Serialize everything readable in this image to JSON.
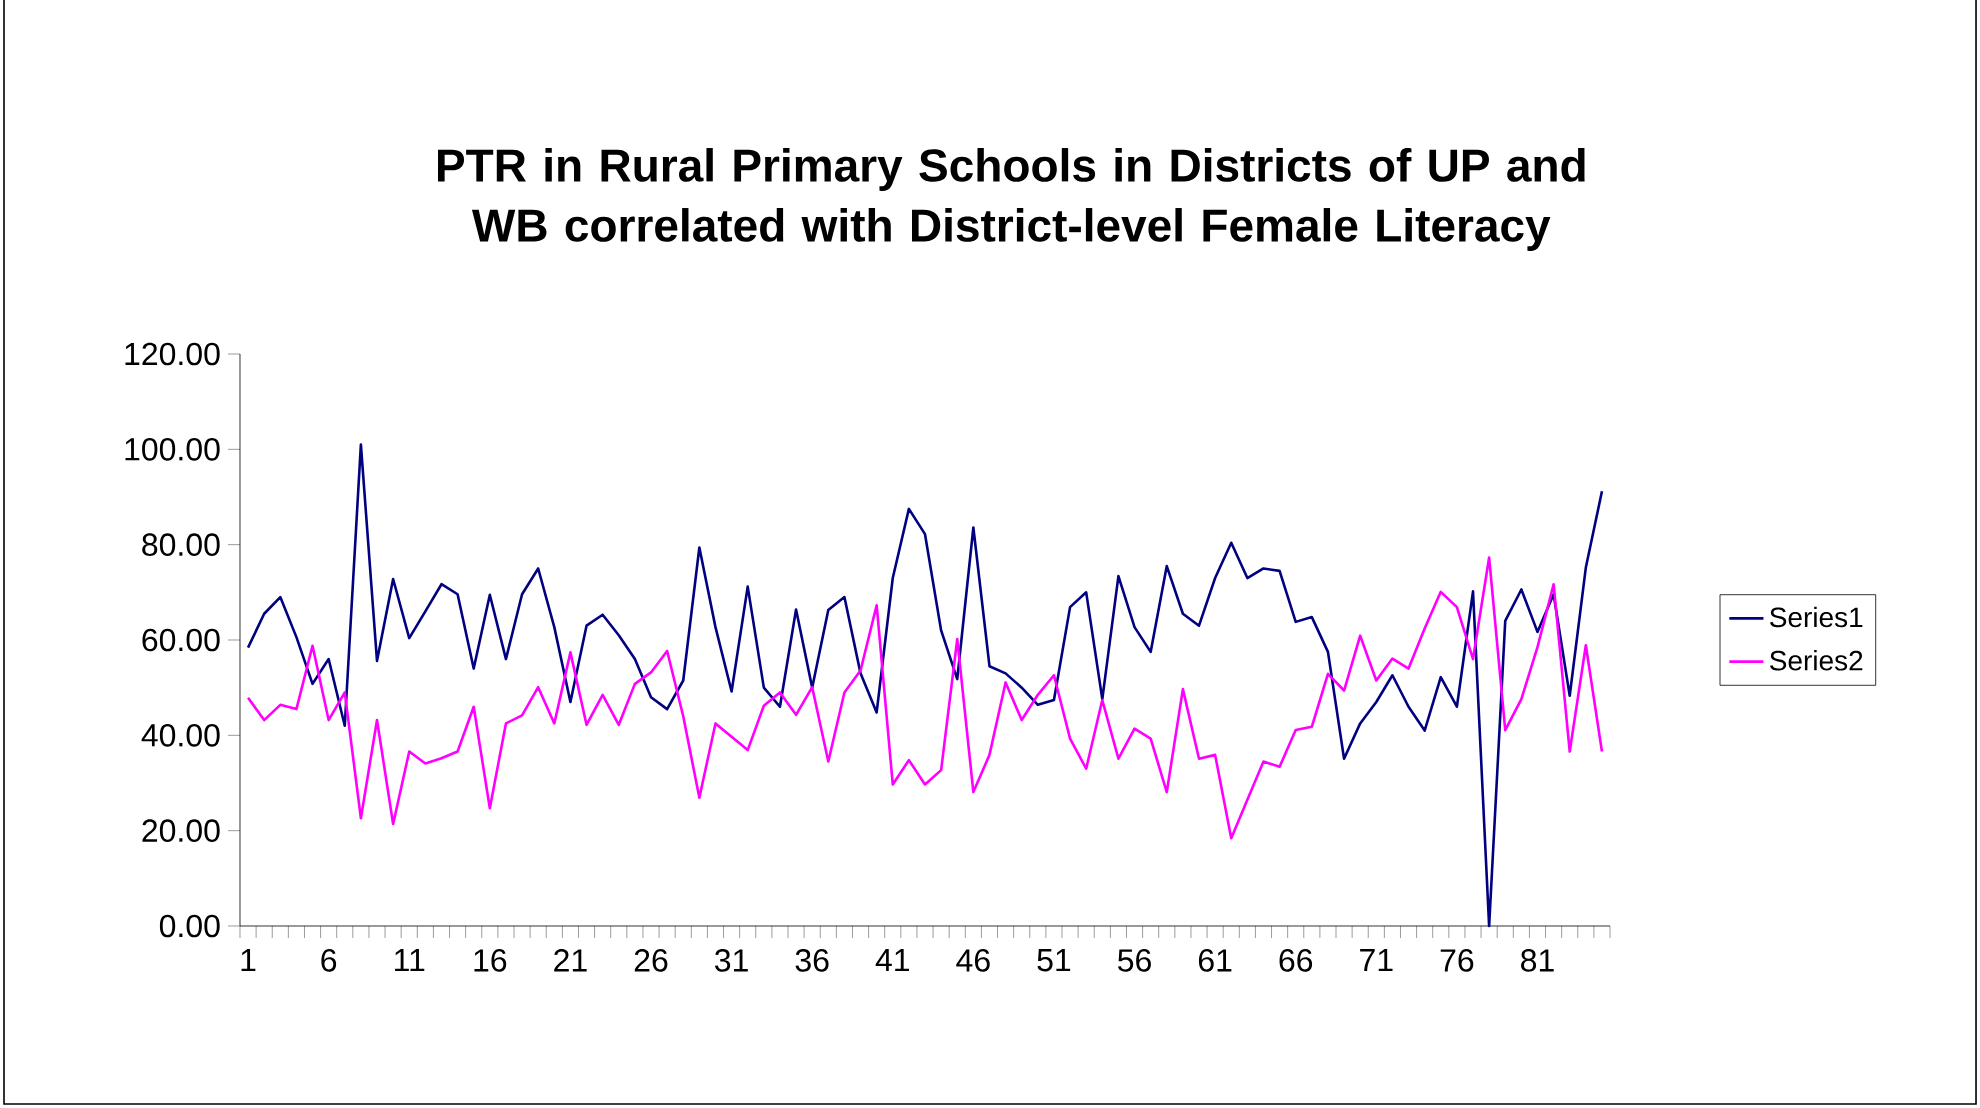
{
  "chart_data": {
    "type": "line",
    "title": "PTR in Rural Primary Schools in Districts of UP and WB correlated with District-level Female Literacy",
    "categories": [
      "1",
      null,
      null,
      null,
      null,
      "6",
      null,
      null,
      null,
      null,
      "11",
      null,
      null,
      null,
      null,
      "16",
      null,
      null,
      null,
      null,
      "21",
      null,
      null,
      null,
      null,
      "26",
      null,
      null,
      null,
      null,
      "31",
      null,
      null,
      null,
      null,
      "36",
      null,
      null,
      null,
      null,
      "41",
      null,
      null,
      null,
      null,
      "46",
      null,
      null,
      null,
      null,
      "51",
      null,
      null,
      null,
      null,
      "56",
      null,
      null,
      null,
      null,
      "61",
      null,
      null,
      null,
      null,
      "66",
      null,
      null,
      null,
      null,
      "71",
      null,
      null,
      null,
      null,
      "76",
      null,
      null,
      null,
      null,
      "81",
      null,
      null,
      null,
      null
    ],
    "series": [
      {
        "name": "Series1",
        "color": "#000080",
        "values": [
          58.4,
          65.5,
          69,
          60.6,
          50.8,
          56,
          42,
          101,
          55.6,
          72.8,
          60.4,
          66,
          71.7,
          69.6,
          54,
          69.5,
          56,
          69.6,
          75,
          62.7,
          47,
          63,
          65.3,
          61,
          56,
          48,
          45.5,
          51.5,
          79.4,
          62.7,
          49.2,
          71.2,
          50,
          46,
          66.4,
          50,
          66.3,
          69,
          53,
          44.8,
          73,
          87.5,
          82.2,
          62,
          51.8,
          83.6,
          54.5,
          53,
          50,
          46.4,
          47.4,
          66.9,
          70,
          47.6,
          73.4,
          62.7,
          57.5,
          75.5,
          65.5,
          63,
          73,
          80.4,
          73,
          75,
          74.5,
          63.8,
          64.8,
          57.5,
          35.1,
          42.5,
          47,
          52.6,
          46,
          41,
          52.2,
          46,
          70.2,
          0,
          64,
          70.6,
          61.7,
          69.6,
          48.3,
          75.2,
          91.2
        ]
      },
      {
        "name": "Series2",
        "color": "#ff00ff",
        "values": [
          47.9,
          43.2,
          46.4,
          45.5,
          58.8,
          43.2,
          49,
          22.6,
          43.2,
          21.4,
          36.6,
          34.1,
          35.2,
          36.6,
          46,
          24.7,
          42.5,
          44.2,
          50.1,
          42.5,
          57.4,
          42.2,
          48.5,
          42.2,
          50.8,
          53.2,
          57.7,
          44,
          26.9,
          42.5,
          39.7,
          36.9,
          46.2,
          49,
          44.3,
          50.1,
          34.5,
          49,
          53.6,
          67.3,
          29.7,
          34.8,
          29.7,
          32.7,
          60.2,
          28.1,
          35.9,
          51.1,
          43.2,
          48.5,
          52.6,
          39.3,
          33,
          47.4,
          35.1,
          41.4,
          39.3,
          28.1,
          49.7,
          35.1,
          35.9,
          18.4,
          26.5,
          34.5,
          33.4,
          41.1,
          41.8,
          52.9,
          49.4,
          60.9,
          51.5,
          56.1,
          54,
          62.4,
          70.1,
          66.9,
          56,
          77.3,
          41.1,
          47.6,
          58.5,
          71.7,
          36.6,
          58.9,
          36.6
        ]
      }
    ],
    "ylim": [
      0,
      120
    ],
    "yticks": [
      {
        "value": 0,
        "label": "0.00"
      },
      {
        "value": 20,
        "label": "20.00"
      },
      {
        "value": 40,
        "label": "40.00"
      },
      {
        "value": 60,
        "label": "60.00"
      },
      {
        "value": 80,
        "label": "80.00"
      },
      {
        "value": 100,
        "label": "100.00"
      },
      {
        "value": 120,
        "label": "120.00"
      }
    ],
    "legend": "right",
    "line_style": "solid"
  }
}
